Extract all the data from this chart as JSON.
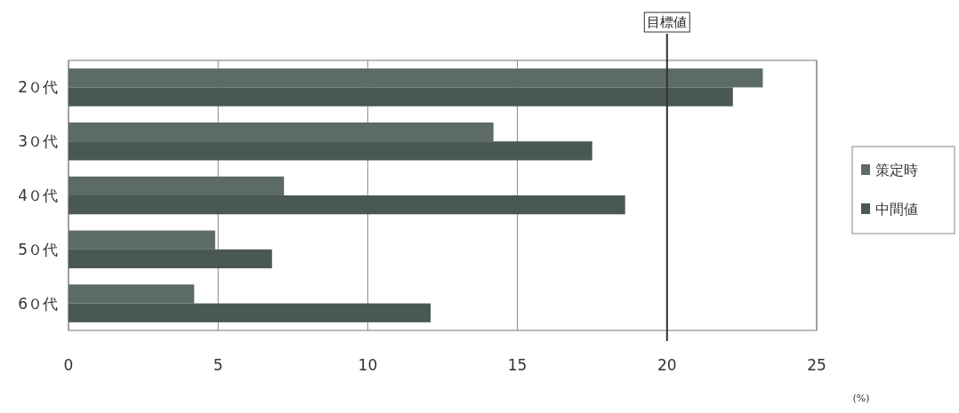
{
  "chart_data": {
    "type": "bar",
    "orientation": "horizontal",
    "categories": [
      "2０代",
      "3０代",
      "4０代",
      "5０代",
      "6０代"
    ],
    "series": [
      {
        "name": "策定時",
        "color": "#5c6b64",
        "values": [
          23.2,
          14.2,
          7.2,
          4.9,
          4.2
        ]
      },
      {
        "name": "中間値",
        "color": "#4a5852",
        "values": [
          22.2,
          17.5,
          18.6,
          6.8,
          12.1
        ]
      }
    ],
    "xlim": [
      0,
      25
    ],
    "xticks": [
      0,
      5,
      10,
      15,
      20,
      25
    ],
    "xlabel": "(%)",
    "grid": "x",
    "legend": "right",
    "ref_lines": [
      {
        "axis": "x",
        "value": 20,
        "label": "目標値",
        "color": "#333333"
      }
    ]
  }
}
